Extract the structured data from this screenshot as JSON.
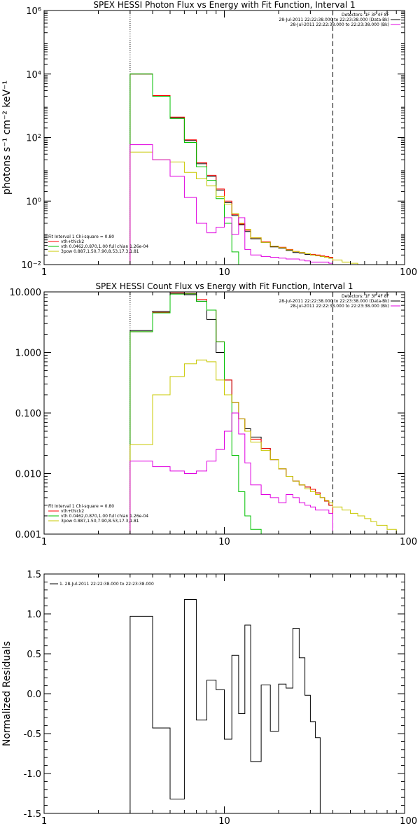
{
  "chart_data": [
    {
      "id": "photon",
      "type": "line",
      "title": "SPEX HESSI Photon Flux vs Energy with Fit Function, Interval 1",
      "ylabel": "photons s⁻¹ cm⁻² keV⁻¹",
      "xlabel": "",
      "xscale": "log",
      "yscale": "log",
      "xlim": [
        1,
        100
      ],
      "ylim": [
        0.01,
        1000000
      ],
      "x_ticks": [
        {
          "v": 1,
          "label": "1"
        },
        {
          "v": 10,
          "label": "10"
        },
        {
          "v": 100,
          "label": "100"
        }
      ],
      "y_ticks": [
        {
          "v": 0.01,
          "label": "10⁻²"
        },
        {
          "v": 1,
          "label": "10⁰"
        },
        {
          "v": 100,
          "label": "10²"
        },
        {
          "v": 10000,
          "label": "10⁴"
        },
        {
          "v": 1000000,
          "label": "10⁶"
        }
      ],
      "vlines": [
        {
          "x": 3,
          "style": "dotted"
        },
        {
          "x": 40,
          "style": "dashed"
        }
      ],
      "legend_top_right": [
        "Detectors: 1F 3F 4F 8F",
        "28-Jul-2011 22:22:38.000 to 22:23:38.000 (Data-Bk)",
        "28-Jul-2011 22:22:38.000 to 22:23:38.000 (Bk)"
      ],
      "legend_bottom_left": [
        "Fit Interval 1    Chi-square = 0.80",
        "vth+thick2  ",
        "vth 0.0462,0.870,1.00  full chian 1.26e-04",
        "3pow 0.887,1.50,7.90,8.53,17.3,1.81"
      ],
      "edges": [
        3,
        4,
        5,
        6,
        7,
        8,
        9,
        10,
        11,
        12,
        13,
        14,
        16,
        18,
        20,
        22,
        24,
        26,
        28,
        30,
        32,
        34,
        36,
        38,
        40,
        45,
        50,
        55,
        60
      ],
      "series": [
        {
          "name": "Data-Bk",
          "color": "#000000",
          "values": [
            10000,
            2000,
            420,
            80,
            15,
            6,
            2.2,
            0.9,
            0.35,
            0.18,
            0.11,
            0.065,
            0.05,
            0.036,
            0.033,
            0.028,
            0.024,
            0.023,
            0.021,
            0.02,
            0.019,
            0.018,
            0.017,
            0.016
          ]
        },
        {
          "name": "vth+thick2",
          "color": "#ff0000",
          "values": [
            10000,
            2100,
            440,
            85,
            16,
            6.5,
            2.4,
            1.0,
            0.38,
            0.19,
            0.12,
            0.07,
            0.052,
            0.038,
            0.035,
            0.03,
            0.026,
            0.024,
            0.022,
            0.021,
            0.02,
            0.019,
            0.018,
            0.017
          ]
        },
        {
          "name": "vth",
          "color": "#00c000",
          "values": [
            10000,
            2000,
            400,
            70,
            12,
            4.5,
            1.2,
            0.2,
            0.025,
            0.005
          ]
        },
        {
          "name": "3pow",
          "color": "#c8c800",
          "values": [
            35,
            20,
            17,
            8,
            5,
            3,
            1.4,
            0.8,
            0.4,
            0.2,
            0.13,
            0.07,
            0.05,
            0.038,
            0.034,
            0.029,
            0.026,
            0.024,
            0.022,
            0.02,
            0.019,
            0.018,
            0.017,
            0.016,
            0.014,
            0.012,
            0.011,
            0.01
          ]
        },
        {
          "name": "Bk",
          "color": "#e000e0",
          "values": [
            60,
            20,
            6,
            1.3,
            0.2,
            0.1,
            0.15,
            0.3,
            0.09,
            0.3,
            0.03,
            0.02,
            0.018,
            0.017,
            0.016,
            0.015,
            0.015,
            0.014,
            0.013,
            0.012,
            0.012,
            0.012,
            0.012,
            0.011
          ]
        }
      ]
    },
    {
      "id": "count",
      "type": "line",
      "title": "SPEX HESSI Count Flux vs Energy with Fit Function, Interval 1",
      "ylabel": "",
      "xlabel": "",
      "xscale": "log",
      "yscale": "log",
      "xlim": [
        1,
        100
      ],
      "ylim": [
        0.001,
        10
      ],
      "x_ticks": [
        {
          "v": 1,
          "label": "1"
        },
        {
          "v": 10,
          "label": "10"
        },
        {
          "v": 100,
          "label": "100"
        }
      ],
      "y_ticks": [
        {
          "v": 0.001,
          "label": "0.001"
        },
        {
          "v": 0.01,
          "label": "0.010"
        },
        {
          "v": 0.1,
          "label": "0.100"
        },
        {
          "v": 1,
          "label": "1.000"
        },
        {
          "v": 10,
          "label": "10.000"
        }
      ],
      "vlines": [
        {
          "x": 3,
          "style": "dotted"
        },
        {
          "x": 40,
          "style": "dashed"
        }
      ],
      "legend_top_right": [
        "Detectors: 1F 3F 4F 8F",
        "28-Jul-2011 22:22:38.000 to 22:23:38.000 (Data-Bk)",
        "28-Jul-2011 22:22:38.000 to 22:23:38.000 (Bk)"
      ],
      "legend_bottom_left": [
        "Fit Interval 1    Chi-square = 0.80",
        "vth+thick2  ",
        "vth 0.0462,0.870,1.00  full chian 1.26e-04",
        "3pow 0.887,1.50,7.90,8.53,17.3,1.81"
      ],
      "edges": [
        3,
        4,
        5,
        6,
        7,
        8,
        9,
        10,
        11,
        12,
        13,
        14,
        16,
        18,
        20,
        22,
        24,
        26,
        28,
        30,
        32,
        34,
        36,
        38,
        40,
        45,
        50,
        55,
        60,
        65,
        70,
        80,
        90
      ],
      "series": [
        {
          "name": "Data-Bk",
          "color": "#000000",
          "values": [
            2.3,
            4.8,
            9.5,
            9,
            7,
            3.5,
            1,
            0.35,
            0.15,
            0.08,
            0.055,
            0.04,
            0.026,
            0.017,
            0.012,
            0.009,
            0.0075,
            0.0065,
            0.006,
            0.0055,
            0.0048,
            0.004,
            0.0035,
            0.003
          ]
        },
        {
          "name": "vth+thick2",
          "color": "#ff0000",
          "values": [
            2.2,
            4.6,
            9.6,
            9.4,
            7.5,
            5,
            1.5,
            0.35,
            0.15,
            0.08,
            0.05,
            0.037,
            0.026,
            0.017,
            0.012,
            0.009,
            0.0075,
            0.0065,
            0.006,
            0.0055,
            0.0048,
            0.004,
            0.0035,
            0.003
          ]
        },
        {
          "name": "vth",
          "color": "#00c000",
          "values": [
            2.2,
            4.5,
            9.2,
            9.3,
            7.0,
            5.0,
            1.5,
            0.2,
            0.02,
            0.005,
            0.002,
            0.0012
          ]
        },
        {
          "name": "3pow",
          "color": "#c8c800",
          "values": [
            0.03,
            0.2,
            0.4,
            0.65,
            0.75,
            0.7,
            0.35,
            0.2,
            0.15,
            0.08,
            0.05,
            0.033,
            0.024,
            0.017,
            0.012,
            0.009,
            0.0075,
            0.0065,
            0.0056,
            0.005,
            0.0045,
            0.004,
            0.0036,
            0.0033,
            0.0028,
            0.0025,
            0.0022,
            0.002,
            0.0018,
            0.0016,
            0.0014,
            0.0012
          ]
        },
        {
          "name": "Bk",
          "color": "#e000e0",
          "values": [
            0.016,
            0.013,
            0.011,
            0.01,
            0.011,
            0.016,
            0.025,
            0.05,
            0.1,
            0.045,
            0.015,
            0.0065,
            0.0045,
            0.004,
            0.0033,
            0.0045,
            0.004,
            0.0033,
            0.003,
            0.0028,
            0.0025,
            0.0025,
            0.0025,
            0.0022
          ]
        }
      ]
    },
    {
      "id": "resid",
      "type": "line",
      "title": "",
      "ylabel": "Normalized Residuals",
      "xlabel": "",
      "xscale": "log",
      "yscale": "linear",
      "xlim": [
        1,
        100
      ],
      "ylim": [
        -1.5,
        1.5
      ],
      "x_ticks": [
        {
          "v": 1,
          "label": "1"
        },
        {
          "v": 10,
          "label": "10"
        },
        {
          "v": 100,
          "label": "100"
        }
      ],
      "y_ticks": [
        {
          "v": -1.5,
          "label": "-1.5"
        },
        {
          "v": -1.0,
          "label": "-1.0"
        },
        {
          "v": -0.5,
          "label": "-0.5"
        },
        {
          "v": 0,
          "label": "0.0"
        },
        {
          "v": 0.5,
          "label": "0.5"
        },
        {
          "v": 1.0,
          "label": "1.0"
        },
        {
          "v": 1.5,
          "label": "1.5"
        }
      ],
      "vlines": [],
      "legend_top_left": [
        "1. 28-Jul-2011 22:22:38.000 to 22:23:38.000"
      ],
      "edges": [
        3,
        4,
        5,
        6,
        7,
        8,
        9,
        10,
        11,
        12,
        13,
        14,
        16,
        18,
        20,
        22,
        24,
        26,
        28,
        30,
        32,
        34,
        36,
        38,
        40
      ],
      "series": [
        {
          "name": "1. 28-Jul-2011 22:22:38.000 to 22:23:38.000",
          "color": "#000000",
          "values": [
            0.97,
            -0.43,
            -1.32,
            1.18,
            -0.33,
            0.17,
            0.05,
            -0.57,
            0.48,
            -0.25,
            0.86,
            -0.85,
            0.11,
            -0.47,
            0.12,
            0.07,
            0.82,
            0.45,
            -0.02,
            -0.35,
            -0.55,
            -1.5,
            -1.5,
            -1.5
          ]
        }
      ]
    }
  ]
}
